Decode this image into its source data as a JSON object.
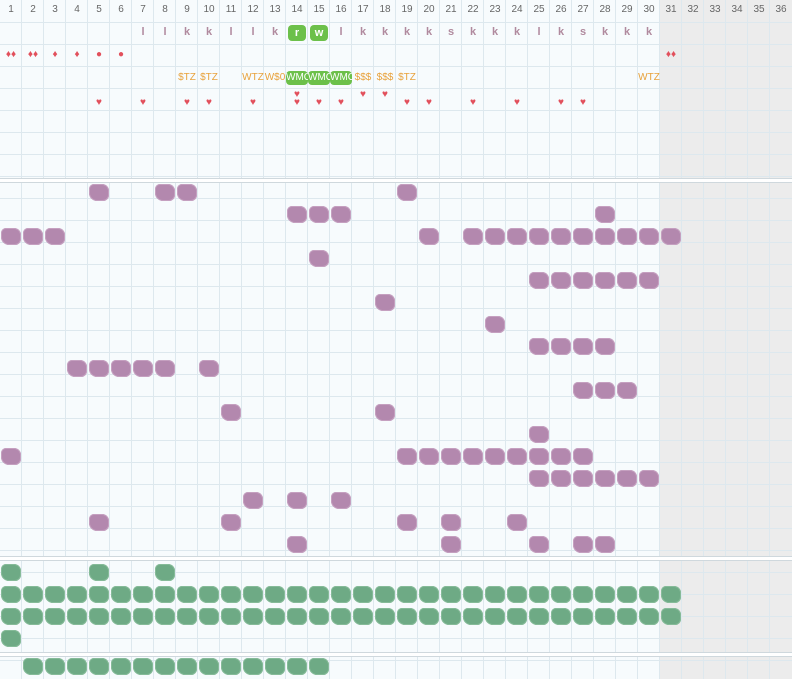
{
  "calendar": {
    "day_numbers": [
      "1",
      "2",
      "3",
      "4",
      "5",
      "6",
      "7",
      "8",
      "9",
      "10",
      "11",
      "12",
      "13",
      "14",
      "15",
      "16",
      "17",
      "18",
      "19",
      "20",
      "21",
      "22",
      "23",
      "24",
      "25",
      "26",
      "27",
      "28",
      "29",
      "30",
      "31",
      "32",
      "33",
      "34",
      "35",
      "36"
    ],
    "inactive_from_day": 31
  },
  "top_section": {
    "letters": [
      {
        "day": 7,
        "text": "l"
      },
      {
        "day": 8,
        "text": "l"
      },
      {
        "day": 9,
        "text": "k"
      },
      {
        "day": 10,
        "text": "k"
      },
      {
        "day": 11,
        "text": "l"
      },
      {
        "day": 12,
        "text": "l"
      },
      {
        "day": 13,
        "text": "k"
      },
      {
        "day": 14,
        "text": "r",
        "highlight": true
      },
      {
        "day": 15,
        "text": "w",
        "highlight": true
      },
      {
        "day": 16,
        "text": "l"
      },
      {
        "day": 17,
        "text": "k"
      },
      {
        "day": 18,
        "text": "k"
      },
      {
        "day": 19,
        "text": "k"
      },
      {
        "day": 20,
        "text": "k"
      },
      {
        "day": 21,
        "text": "s"
      },
      {
        "day": 22,
        "text": "k"
      },
      {
        "day": 23,
        "text": "k"
      },
      {
        "day": 24,
        "text": "k"
      },
      {
        "day": 25,
        "text": "l"
      },
      {
        "day": 26,
        "text": "k"
      },
      {
        "day": 27,
        "text": "s"
      },
      {
        "day": 28,
        "text": "k"
      },
      {
        "day": 29,
        "text": "k"
      },
      {
        "day": 30,
        "text": "k"
      }
    ],
    "drops": [
      {
        "day": 1,
        "text": "♦♦"
      },
      {
        "day": 2,
        "text": "♦♦"
      },
      {
        "day": 3,
        "text": "♦"
      },
      {
        "day": 4,
        "text": "♦"
      },
      {
        "day": 5,
        "text": "●"
      },
      {
        "day": 6,
        "text": "●"
      },
      {
        "day": 31,
        "text": "♦♦"
      }
    ],
    "costs": [
      {
        "day": 9,
        "text": "$TZ"
      },
      {
        "day": 10,
        "text": "$TZ"
      },
      {
        "day": 12,
        "text": "WTZ"
      },
      {
        "day": 13,
        "text": "W$0"
      },
      {
        "day": 14,
        "text": "WMO",
        "highlight": true
      },
      {
        "day": 15,
        "text": "WMO",
        "highlight": true
      },
      {
        "day": 16,
        "text": "WMO",
        "highlight": true
      },
      {
        "day": 17,
        "text": "$$$"
      },
      {
        "day": 18,
        "text": "$$$"
      },
      {
        "day": 19,
        "text": "$TZ"
      },
      {
        "day": 30,
        "text": "WTZ"
      }
    ],
    "hearts_row1": [
      {
        "day": 5,
        "text": "♥"
      },
      {
        "day": 7,
        "text": "♥"
      },
      {
        "day": 9,
        "text": "♥"
      },
      {
        "day": 10,
        "text": "♥"
      },
      {
        "day": 12,
        "text": "♥"
      },
      {
        "day": 14,
        "text": "♥"
      },
      {
        "day": 15,
        "text": "♥"
      },
      {
        "day": 16,
        "text": "♥"
      },
      {
        "day": 19,
        "text": "♥"
      },
      {
        "day": 20,
        "text": "♥"
      },
      {
        "day": 22,
        "text": "♥"
      },
      {
        "day": 24,
        "text": "♥"
      },
      {
        "day": 26,
        "text": "♥"
      },
      {
        "day": 27,
        "text": "♥"
      }
    ],
    "hearts_row0": [
      {
        "day": 14,
        "text": "♥"
      },
      {
        "day": 17,
        "text": "♥"
      },
      {
        "day": 18,
        "text": "♥"
      }
    ]
  },
  "purple_rows": [
    [
      5,
      8,
      9,
      19
    ],
    [
      14,
      15,
      16,
      28
    ],
    [
      1,
      2,
      3,
      20,
      22,
      23,
      24,
      25,
      26,
      27,
      28,
      29,
      30,
      31
    ],
    [
      15
    ],
    [
      25,
      26,
      27,
      28,
      29,
      30
    ],
    [
      18
    ],
    [
      23
    ],
    [
      25,
      26,
      27,
      28
    ],
    [
      4,
      5,
      6,
      7,
      8,
      10
    ],
    [
      27,
      28,
      29
    ],
    [
      11,
      18
    ],
    [
      25
    ],
    [
      1,
      19,
      20,
      21,
      22,
      23,
      24,
      25,
      26,
      27
    ],
    [
      25,
      26,
      27,
      28,
      29,
      30
    ],
    [
      12,
      14,
      16
    ],
    [
      5,
      11,
      19,
      21,
      24
    ],
    [
      14,
      21,
      25,
      27,
      28
    ]
  ],
  "green_rows": [
    [
      1,
      5,
      8
    ],
    [
      1,
      2,
      3,
      4,
      5,
      6,
      7,
      8,
      9,
      10,
      11,
      12,
      13,
      14,
      15,
      16,
      17,
      18,
      19,
      20,
      21,
      22,
      23,
      24,
      25,
      26,
      27,
      28,
      29,
      30,
      31
    ],
    [
      1,
      2,
      3,
      4,
      5,
      6,
      7,
      8,
      9,
      10,
      11,
      12,
      13,
      14,
      15,
      16,
      17,
      18,
      19,
      20,
      21,
      22,
      23,
      24,
      25,
      26,
      27,
      28,
      29,
      30,
      31
    ],
    [
      1
    ]
  ],
  "green_bottom_row": [
    2,
    3,
    4,
    5,
    6,
    7,
    8,
    9,
    10,
    11,
    12,
    13,
    14,
    15
  ],
  "colors": {
    "purple": "#b388ae",
    "green": "#6eaa85",
    "accent_green": "#6cc04a",
    "letter": "#b08a9e",
    "cost": "#e8a23c",
    "heart": "#e2505c"
  }
}
